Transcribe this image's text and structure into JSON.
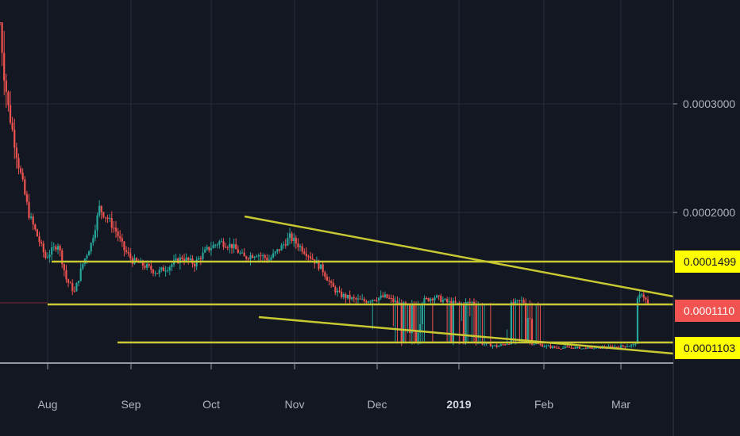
{
  "chart_data": {
    "type": "candlestick",
    "x_ticks": [
      {
        "label": "Aug",
        "date": "2018-08-01",
        "bold": false
      },
      {
        "label": "Sep",
        "date": "2018-09-01",
        "bold": false
      },
      {
        "label": "Oct",
        "date": "2018-10-01",
        "bold": false
      },
      {
        "label": "Nov",
        "date": "2018-11-01",
        "bold": false
      },
      {
        "label": "Dec",
        "date": "2018-12-01",
        "bold": false
      },
      {
        "label": "2019",
        "date": "2019-01-01",
        "bold": true
      },
      {
        "label": "Feb",
        "date": "2019-02-01",
        "bold": false
      },
      {
        "label": "Mar",
        "date": "2019-03-01",
        "bold": false
      }
    ],
    "y_ticks": [
      {
        "label": "0.0003000",
        "value": 0.0003
      },
      {
        "label": "0.0002000",
        "value": 0.0002
      }
    ],
    "price_tags": [
      {
        "label": "0.0001499",
        "bg": "#ffff00",
        "fg": "#131722"
      },
      {
        "label": "0.0001110",
        "bg": "#f05350",
        "fg": "#ffffff"
      },
      {
        "label": "0.0001103",
        "bg": "#ffff00",
        "fg": "#131722"
      }
    ],
    "colors": {
      "background": "#131722",
      "up_candle": "#26a69a",
      "down_candle": "#ef5350",
      "drawing_lines": "#c8c832",
      "grid": "#2a2e39"
    },
    "drawings": [
      {
        "type": "horizontal-line",
        "level": 0.0001499,
        "from": "2018-08-01",
        "to": "2019-03-10"
      },
      {
        "type": "horizontal-line",
        "level": 0.000111,
        "from": "2018-07-31",
        "to": "2019-03-10"
      },
      {
        "type": "horizontal-line",
        "level": 0.0001103,
        "from": "2018-08-28",
        "to": "2019-03-10"
      },
      {
        "type": "trend-line",
        "from": "2018-10-12",
        "to": "2019-03-10",
        "description": "descending resistance"
      },
      {
        "type": "trend-line",
        "from": "2018-11-15",
        "to": "2019-03-10",
        "description": "descending support"
      }
    ],
    "series": [
      {
        "values": [
          [
            0,
            0.000342
          ],
          [
            2,
            0.000318
          ],
          [
            5,
            0.000286
          ],
          [
            9,
            0.000244
          ],
          [
            14,
            0.000198
          ],
          [
            18,
            0.000176
          ],
          [
            22,
            0.000154
          ],
          [
            28,
            0.000168
          ],
          [
            32,
            0.000134
          ],
          [
            36,
            0.000122
          ],
          [
            40,
            0.000148
          ],
          [
            44,
            0.000168
          ],
          [
            48,
            0.000204
          ],
          [
            52,
            0.000194
          ],
          [
            56,
            0.000181
          ],
          [
            60,
            0.000162
          ],
          [
            64,
            0.000151
          ],
          [
            70,
            0.000146
          ],
          [
            76,
            0.00014
          ],
          [
            82,
            0.000146
          ],
          [
            88,
            0.000154
          ],
          [
            94,
            0.000148
          ],
          [
            100,
            0.000162
          ],
          [
            106,
            0.00017
          ],
          [
            112,
            0.000166
          ],
          [
            118,
            0.000154
          ],
          [
            124,
            0.000158
          ],
          [
            130,
            0.000152
          ],
          [
            136,
            0.000165
          ],
          [
            140,
            0.000175
          ],
          [
            144,
            0.000167
          ],
          [
            150,
            0.000155
          ],
          [
            156,
            0.000142
          ],
          [
            160,
            0.000128
          ],
          [
            164,
            0.00012
          ],
          [
            170,
            0.000116
          ],
          [
            176,
            0.000114
          ],
          [
            180,
            0.000116
          ],
          [
            186,
            0.000118
          ],
          [
            192,
            0.000112
          ],
          [
            198,
            0.000109
          ],
          [
            204,
            0.000114
          ],
          [
            210,
            0.000118
          ],
          [
            216,
            0.000113
          ],
          [
            222,
            0.000111
          ],
          [
            228,
            0.000113
          ],
          [
            234,
            0.000108
          ],
          [
            240,
            0.000104
          ],
          [
            246,
            0.00011
          ],
          [
            252,
            0.000114
          ],
          [
            258,
            0.000109
          ],
          [
            264,
            0.000104
          ],
          [
            270,
            0.000101
          ],
          [
            276,
            0.000102
          ],
          [
            282,
            0.0001
          ],
          [
            288,
            0.000101
          ],
          [
            294,
            0.000102
          ],
          [
            300,
            0.000104
          ],
          [
            306,
            0.000106
          ],
          [
            310,
            0.000122
          ],
          [
            313,
            0.000111
          ]
        ]
      }
    ]
  }
}
